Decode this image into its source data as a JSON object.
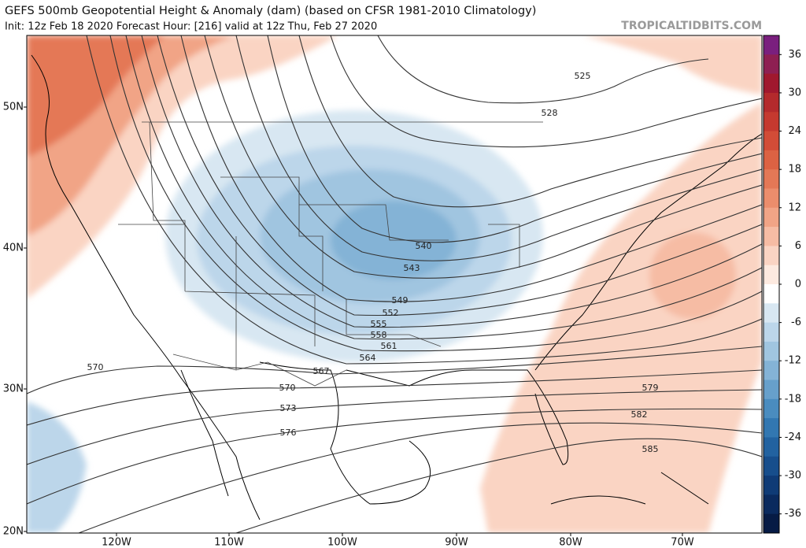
{
  "header": {
    "title": "GEFS 500mb Geopotential Height & Anomaly (dam) (based on CFSR 1981-2010 Climatology)",
    "subtitle": "Init: 12z Feb 18 2020   Forecast Hour: [216]   valid at 12z Thu, Feb 27 2020",
    "watermark": "TROPICALTIDBITS.COM"
  },
  "map": {
    "lat_labels": [
      "50N",
      "40N",
      "30N",
      "20N"
    ],
    "lon_labels": [
      "120W",
      "110W",
      "100W",
      "90W",
      "80W",
      "70W"
    ],
    "contour_labels": [
      "525",
      "528",
      "540",
      "543",
      "549",
      "552",
      "555",
      "558",
      "561",
      "564",
      "567",
      "570",
      "570",
      "573",
      "576",
      "579",
      "582",
      "585"
    ]
  },
  "colorbar": {
    "labels": [
      "36",
      "30",
      "24",
      "18",
      "12",
      "6",
      "0",
      "-6",
      "-12",
      "-18",
      "-24",
      "-30",
      "-36"
    ],
    "colors": [
      "#7a1f7e",
      "#8e1f52",
      "#a0182e",
      "#b42a2c",
      "#c5392f",
      "#d24c37",
      "#dc6243",
      "#e47856",
      "#eb8d6c",
      "#f1a486",
      "#f6bca4",
      "#fad4c3",
      "#fdeae0",
      "#ffffff",
      "#d8e7f2",
      "#bcd6ea",
      "#a0c5e0",
      "#84b3d6",
      "#67a0cb",
      "#4a8cbf",
      "#3277b1",
      "#2262a0",
      "#174e8c",
      "#0f3b76",
      "#0a2a5e",
      "#061b45"
    ]
  }
}
